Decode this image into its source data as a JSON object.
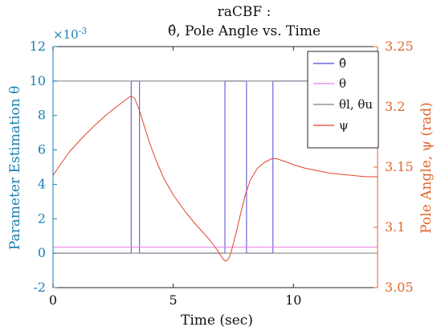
{
  "colors": {
    "left_axis": "#1a7fb3",
    "right_axis": "#e0652a",
    "theta_hat": "#4b4bd6",
    "theta": "#e87ee8",
    "limits": "#7f7f7f",
    "psi": "#e0442c",
    "frame": "#262626"
  },
  "chart_data": {
    "type": "line",
    "title_line1": "raCBF :",
    "title_line2": "θ̂, Pole Angle vs. Time",
    "xlabel": "Time (sec)",
    "ylabel_left": "Parameter Estimation θ",
    "ylabel_right": "Pole Angle, ψ (rad)",
    "left_exponent": "×10",
    "left_exponent_power": "-3",
    "xlim": [
      0,
      13.5
    ],
    "ylim_left": [
      -2,
      12
    ],
    "ylim_right": [
      3.05,
      3.25
    ],
    "xticks": [
      "0",
      "5",
      "10"
    ],
    "yticks_left": [
      "-2",
      "0",
      "2",
      "4",
      "6",
      "8",
      "10",
      "12"
    ],
    "yticks_right": [
      "3.05",
      "3.1",
      "3.15",
      "3.2",
      "3.25"
    ],
    "legend_position": "top-right",
    "legend": [
      "θ̂",
      "θ",
      "θl, θu",
      "ψ"
    ],
    "series": [
      {
        "name": "θ̂",
        "axis": "left",
        "color_key": "theta_hat",
        "x": [
          0,
          3.25,
          3.25,
          3.6,
          3.6,
          7.15,
          7.15,
          8.05,
          8.05,
          9.15,
          9.15,
          13.5
        ],
        "y": [
          0,
          0,
          10,
          10,
          0,
          0,
          10,
          10,
          0,
          0,
          10,
          10
        ]
      },
      {
        "name": "θ",
        "axis": "left",
        "color_key": "theta",
        "x": [
          0,
          13.5
        ],
        "y": [
          0.35,
          0.35
        ]
      },
      {
        "name": "θl, θu",
        "axis": "left",
        "color_key": "limits",
        "x": [
          0,
          13.5
        ],
        "y": [
          0,
          0
        ],
        "x2": [
          0,
          13.5
        ],
        "y2": [
          10,
          10
        ]
      },
      {
        "name": "ψ",
        "axis": "right",
        "color_key": "psi",
        "x": [
          0,
          0.3,
          0.7,
          1.2,
          1.7,
          2.2,
          2.7,
          3.1,
          3.25,
          3.4,
          3.6,
          3.8,
          4.0,
          4.3,
          4.6,
          5.0,
          5.5,
          6.0,
          6.5,
          6.8,
          7.0,
          7.1,
          7.2,
          7.3,
          7.4,
          7.6,
          7.8,
          8.0,
          8.2,
          8.5,
          8.8,
          9.1,
          9.3,
          9.6,
          10.0,
          10.5,
          11.0,
          11.5,
          12.0,
          12.5,
          13.0,
          13.5
        ],
        "y": [
          3.143,
          3.152,
          3.163,
          3.174,
          3.184,
          3.193,
          3.201,
          3.207,
          3.209,
          3.207,
          3.197,
          3.184,
          3.171,
          3.155,
          3.141,
          3.127,
          3.113,
          3.101,
          3.09,
          3.082,
          3.076,
          3.073,
          3.072,
          3.074,
          3.079,
          3.094,
          3.111,
          3.127,
          3.139,
          3.149,
          3.154,
          3.157,
          3.157,
          3.155,
          3.152,
          3.149,
          3.147,
          3.145,
          3.144,
          3.143,
          3.142,
          3.142
        ]
      }
    ]
  }
}
